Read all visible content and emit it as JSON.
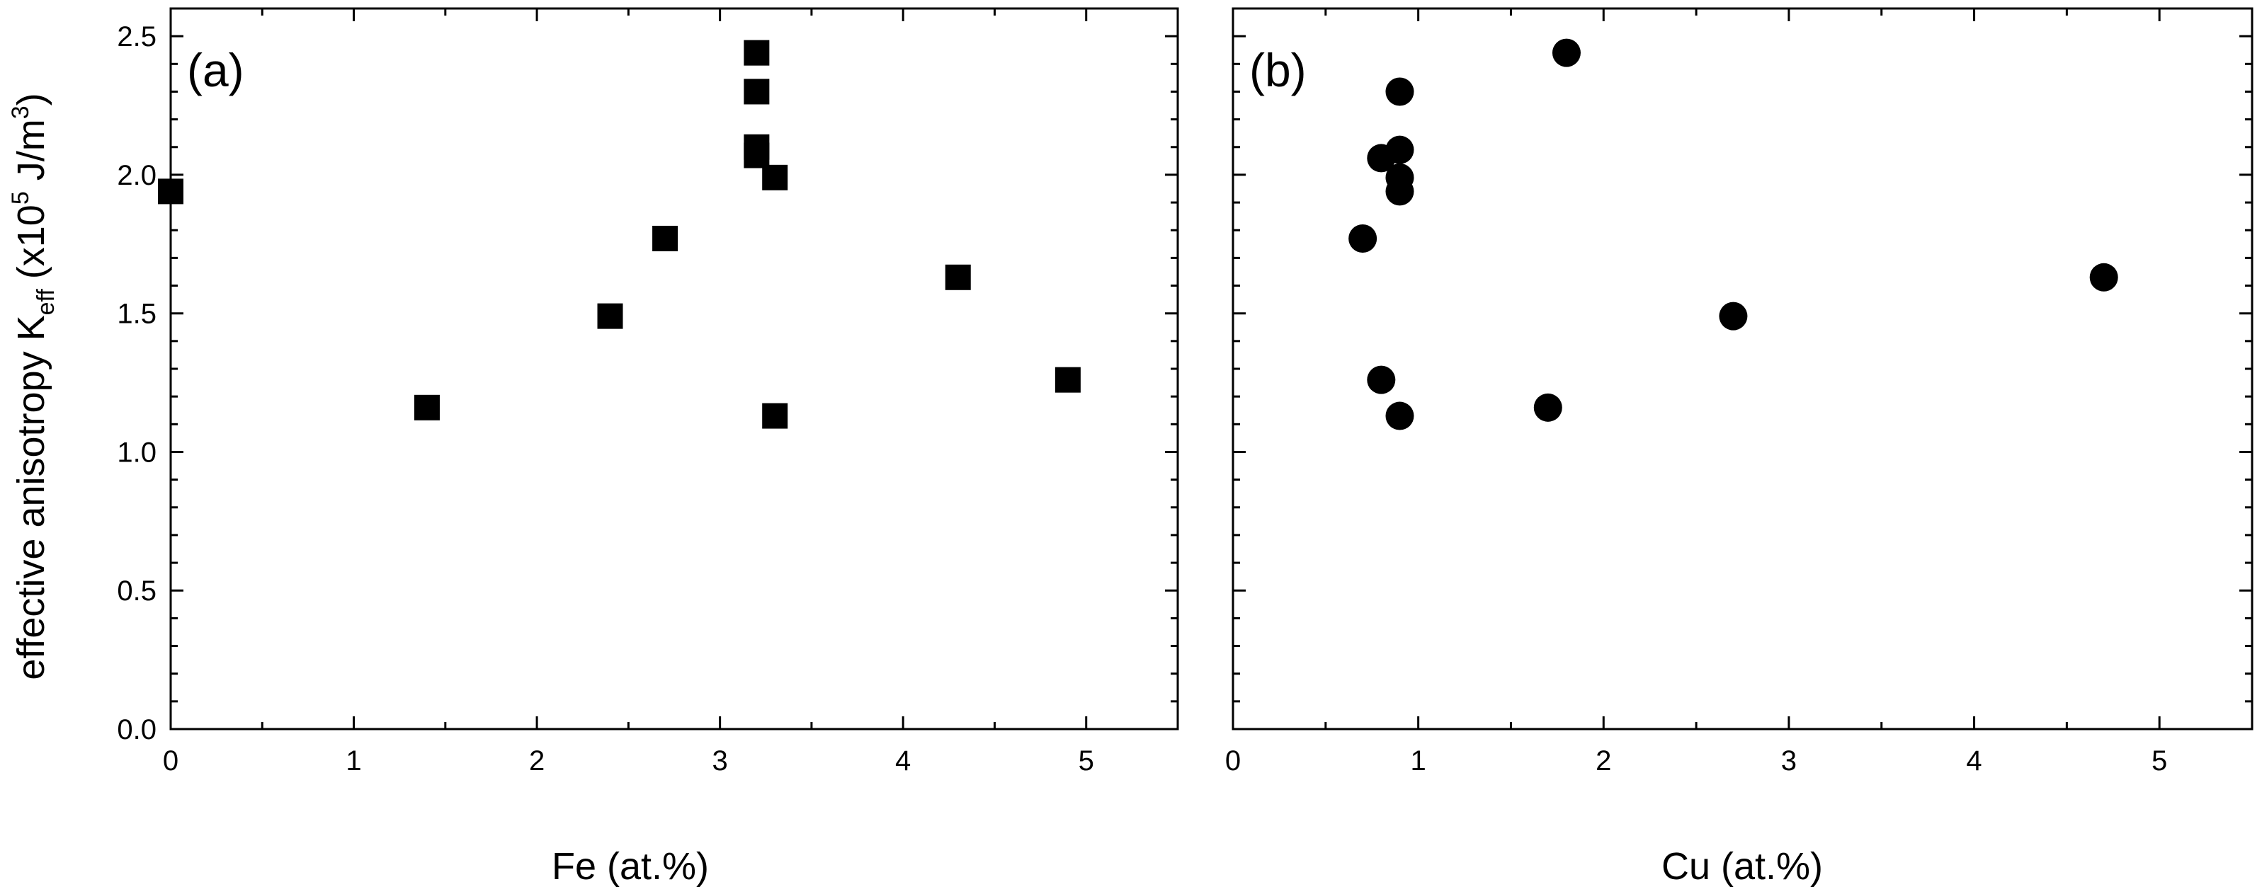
{
  "chart_data": [
    {
      "type": "scatter",
      "panel_label": "(a)",
      "xlabel": "Fe (at.%)",
      "ylabel": "effective anisotropy K",
      "ylabel_sub": "eff",
      "ylabel_unit_open": "(x10",
      "ylabel_unit_exp": "5",
      "ylabel_unit_mid": " J/m",
      "ylabel_unit_exp2": "3",
      "ylabel_unit_close": ")",
      "xlim": [
        0,
        5.5
      ],
      "ylim": [
        0,
        2.6
      ],
      "xticks": [
        "0",
        "1",
        "2",
        "3",
        "4",
        "5"
      ],
      "yticks": [
        "0.0",
        "0.5",
        "1.0",
        "1.5",
        "2.0",
        "2.5"
      ],
      "marker": "square",
      "color": "#000000",
      "grid": false,
      "points": [
        {
          "x": 0.0,
          "y": 1.94
        },
        {
          "x": 1.4,
          "y": 1.16
        },
        {
          "x": 2.4,
          "y": 1.49
        },
        {
          "x": 2.7,
          "y": 1.77
        },
        {
          "x": 3.2,
          "y": 2.44
        },
        {
          "x": 3.2,
          "y": 2.3
        },
        {
          "x": 3.2,
          "y": 2.1
        },
        {
          "x": 3.2,
          "y": 2.07
        },
        {
          "x": 3.3,
          "y": 1.99
        },
        {
          "x": 3.3,
          "y": 1.13
        },
        {
          "x": 4.3,
          "y": 1.63
        },
        {
          "x": 4.9,
          "y": 1.26
        }
      ]
    },
    {
      "type": "scatter",
      "panel_label": "(b)",
      "xlabel": "Cu (at.%)",
      "xlim": [
        0,
        5.5
      ],
      "ylim": [
        0,
        2.6
      ],
      "xticks": [
        "0",
        "1",
        "2",
        "3",
        "4",
        "5"
      ],
      "marker": "circle",
      "color": "#000000",
      "grid": false,
      "points": [
        {
          "x": 0.7,
          "y": 1.77
        },
        {
          "x": 0.8,
          "y": 2.06
        },
        {
          "x": 0.8,
          "y": 1.26
        },
        {
          "x": 0.9,
          "y": 2.3
        },
        {
          "x": 0.9,
          "y": 2.09
        },
        {
          "x": 0.9,
          "y": 1.99
        },
        {
          "x": 0.9,
          "y": 1.94
        },
        {
          "x": 0.9,
          "y": 1.13
        },
        {
          "x": 1.7,
          "y": 1.16
        },
        {
          "x": 1.8,
          "y": 2.44
        },
        {
          "x": 2.7,
          "y": 1.49
        },
        {
          "x": 4.7,
          "y": 1.63
        }
      ]
    }
  ]
}
